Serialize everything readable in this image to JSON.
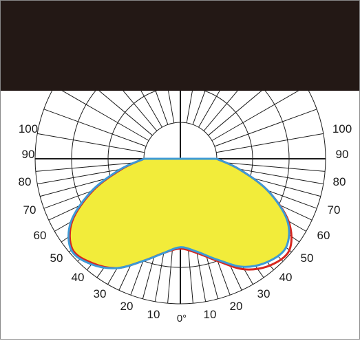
{
  "colors": {
    "header": "#231815",
    "grid": "#1a1a1a",
    "fill": "#f2ec3a",
    "curve_red": "#d7261e",
    "curve_blue": "#3d9ad6",
    "border": "#888888"
  },
  "chart_data": {
    "type": "polar",
    "angle_labels_left": [
      "100",
      "90",
      "80",
      "70",
      "60",
      "50",
      "40",
      "30",
      "20",
      "10"
    ],
    "angle_labels_right": [
      "100",
      "90",
      "80",
      "70",
      "60",
      "50",
      "40",
      "30",
      "20",
      "10"
    ],
    "zero_label": "0°",
    "angles_deg": [
      0,
      10,
      20,
      30,
      40,
      50,
      60,
      70,
      80,
      90
    ],
    "series": [
      {
        "color": "red",
        "right": [
          0.62,
          0.66,
          0.75,
          0.88,
          0.96,
          0.98,
          0.86,
          0.64,
          0.41,
          0.25
        ],
        "left": [
          0.62,
          0.66,
          0.75,
          0.87,
          0.94,
          0.97,
          0.86,
          0.64,
          0.41,
          0.25
        ]
      },
      {
        "color": "blue",
        "right": [
          0.61,
          0.65,
          0.74,
          0.86,
          0.93,
          0.95,
          0.85,
          0.64,
          0.41,
          0.25
        ],
        "left": [
          0.61,
          0.66,
          0.75,
          0.87,
          0.95,
          0.98,
          0.87,
          0.65,
          0.42,
          0.25
        ]
      }
    ],
    "grid": true
  }
}
